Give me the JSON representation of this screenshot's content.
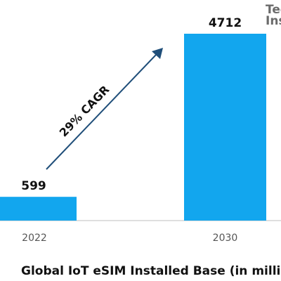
{
  "logo": {
    "line1": "Tec",
    "line2": "Inst"
  },
  "annotation": {
    "label": "29% CAGR"
  },
  "title": "Global IoT eSIM Installed Base (in millio",
  "colors": {
    "bar": "#12A6EE",
    "arrow": "#1F4E79",
    "axis": "#bfbfbf"
  },
  "chart_data": {
    "type": "bar",
    "title": "Global IoT eSIM Installed Base (in millio",
    "categories": [
      "2022",
      "2030"
    ],
    "values": [
      599,
      4712
    ],
    "data_labels": [
      "599",
      "4712"
    ],
    "annotations": [
      "29% CAGR"
    ],
    "ylim": [
      0,
      4712
    ],
    "grid": false,
    "legend": "none"
  }
}
